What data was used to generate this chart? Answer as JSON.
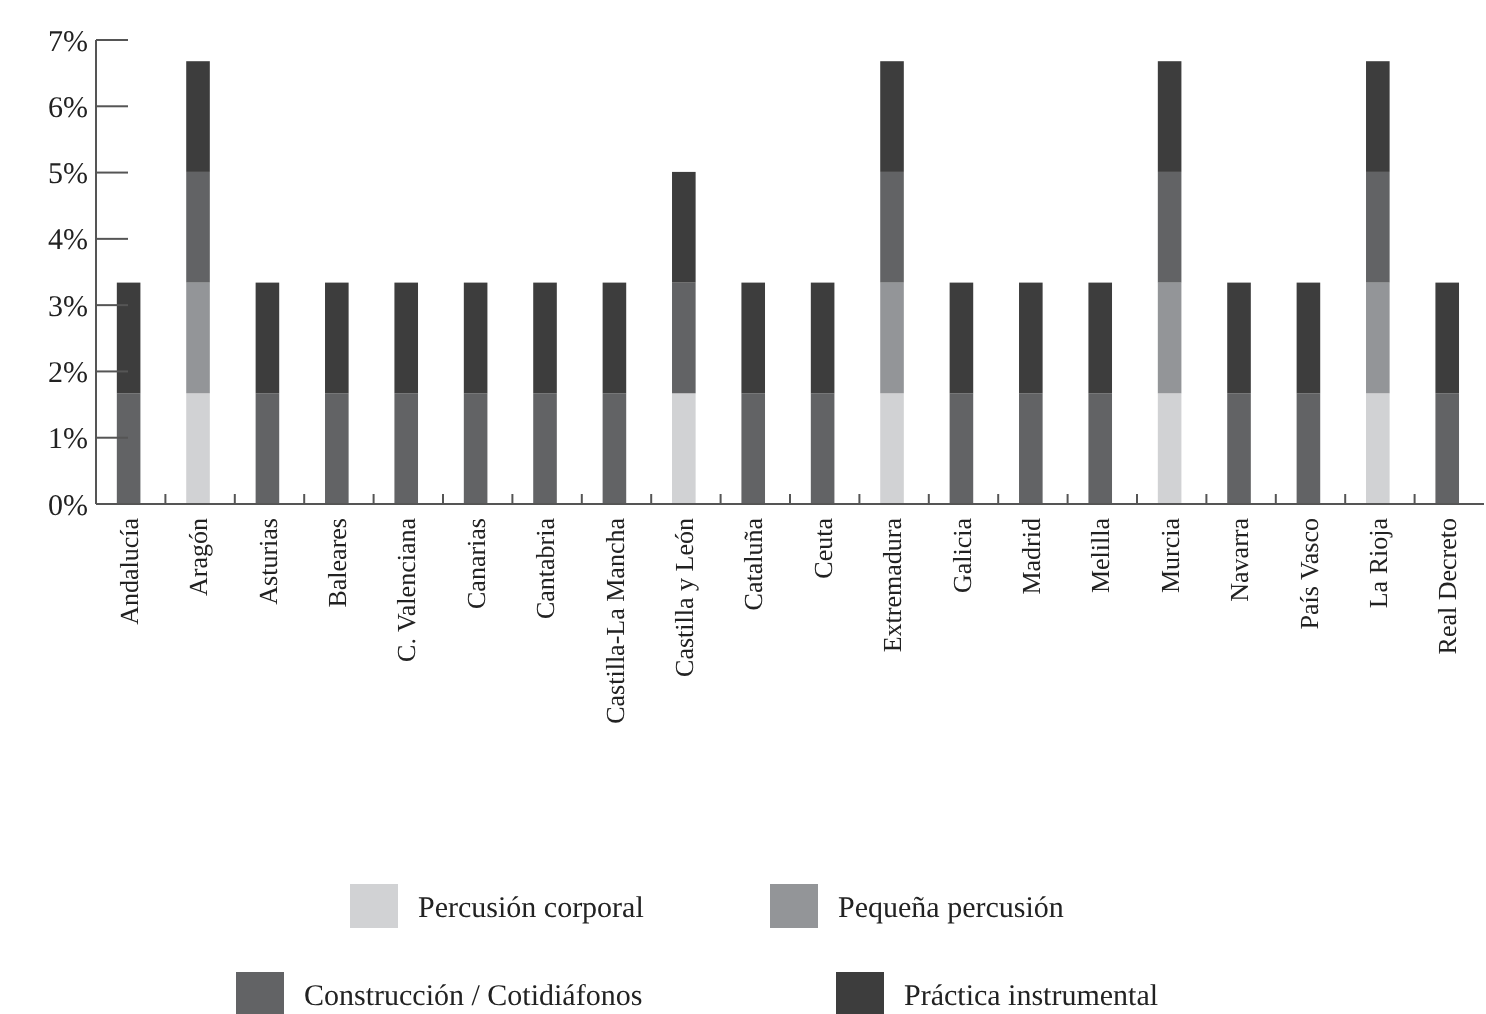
{
  "chart_data": {
    "type": "bar",
    "stacked": true,
    "legend": "bottom",
    "grid": false,
    "categories": [
      "Andalucía",
      "Aragón",
      "Asturias",
      "Baleares",
      "C. Valenciana",
      "Canarias",
      "Cantabria",
      "Castilla-La Mancha",
      "Castilla y León",
      "Cataluña",
      "Ceuta",
      "Extremadura",
      "Galicia",
      "Madrid",
      "Melilla",
      "Murcia",
      "Navarra",
      "País Vasco",
      "La Rioja",
      "Real Decreto"
    ],
    "ylim": [
      0,
      7
    ],
    "yticks": [
      {
        "value": 0,
        "label": "0%"
      },
      {
        "value": 1,
        "label": "1%"
      },
      {
        "value": 2,
        "label": "2%"
      },
      {
        "value": 3,
        "label": "3%"
      },
      {
        "value": 4,
        "label": "4%"
      },
      {
        "value": 5,
        "label": "5%"
      },
      {
        "value": 6,
        "label": "6%"
      },
      {
        "value": 7,
        "label": "7%"
      }
    ],
    "series": [
      {
        "name": "Percusión corporal",
        "color": "#d1d2d4",
        "values": [
          0,
          1.67,
          0,
          0,
          0,
          0,
          0,
          0,
          1.67,
          0,
          0,
          1.67,
          0,
          0,
          0,
          1.67,
          0,
          0,
          1.67,
          0
        ]
      },
      {
        "name": "Pequeña percusión",
        "color": "#939598",
        "values": [
          0,
          1.67,
          0,
          0,
          0,
          0,
          0,
          0,
          0,
          0,
          0,
          1.67,
          0,
          0,
          0,
          1.67,
          0,
          0,
          1.67,
          0
        ]
      },
      {
        "name": "Construcción / Cotidiáfonos",
        "color": "#626365",
        "values": [
          1.67,
          1.67,
          1.67,
          1.67,
          1.67,
          1.67,
          1.67,
          1.67,
          1.67,
          1.67,
          1.67,
          1.67,
          1.67,
          1.67,
          1.67,
          1.67,
          1.67,
          1.67,
          1.67,
          1.67
        ]
      },
      {
        "name": "Práctica instrumental",
        "color": "#3d3d3d",
        "values": [
          1.67,
          1.67,
          1.67,
          1.67,
          1.67,
          1.67,
          1.67,
          1.67,
          1.67,
          1.67,
          1.67,
          1.67,
          1.67,
          1.67,
          1.67,
          1.67,
          1.67,
          1.67,
          1.67,
          1.67
        ]
      }
    ]
  }
}
